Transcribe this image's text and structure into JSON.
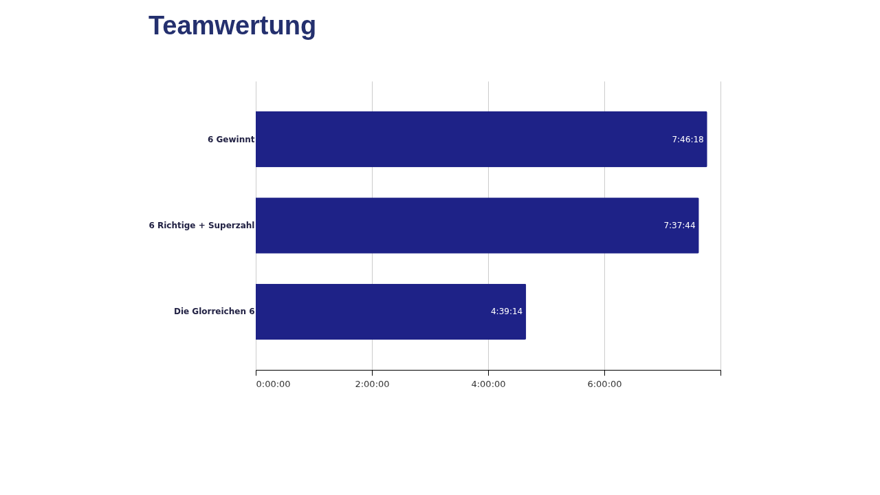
{
  "chart_data": {
    "type": "bar",
    "orientation": "horizontal",
    "title": "Teamwertung",
    "categories": [
      "6 Gewinnt",
      "6 Richtige + Superzahl",
      "Die Glorreichen 6"
    ],
    "series": [
      {
        "color": "#1e2287",
        "values": [
          7.7717,
          7.6289,
          4.6539
        ]
      }
    ],
    "value_labels": [
      "7:46:18",
      "7:37:44",
      "4:39:14"
    ],
    "xlim": [
      0,
      8
    ],
    "xticks": [
      {
        "value": 0,
        "label": "0:00:00"
      },
      {
        "value": 2,
        "label": "2:00:00"
      },
      {
        "value": 4,
        "label": "4:00:00"
      },
      {
        "value": 6,
        "label": "6:00:00"
      },
      {
        "value": 8,
        "label": null
      }
    ],
    "grid": "x"
  }
}
